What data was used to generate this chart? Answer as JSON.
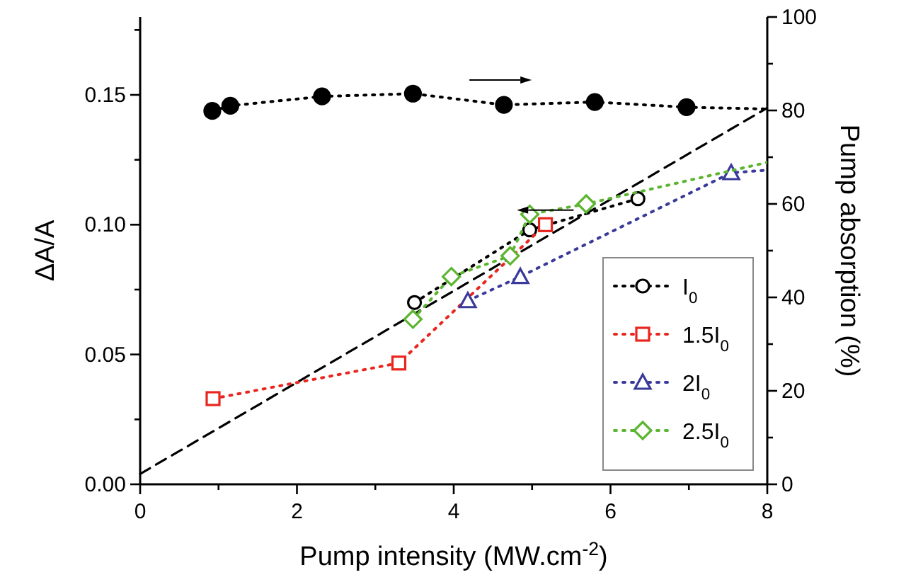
{
  "chart_data": {
    "type": "line",
    "xlabel": "Pump intensity (MW.cm$^{-2}$)",
    "ylabel": "ΔA/A",
    "y2label": "Pump absorption (%)",
    "xlim": [
      0,
      8
    ],
    "xticks": [
      0,
      {
        "value": 1,
        "label": null
      },
      2,
      {
        "value": 3,
        "label": null
      },
      4,
      {
        "value": 5,
        "label": null
      },
      6,
      {
        "value": 7,
        "label": null
      },
      8
    ],
    "ylim": [
      0,
      0.18
    ],
    "yticks": [
      {
        "value": 0,
        "label": "0.00"
      },
      {
        "value": 0.025,
        "label": null
      },
      {
        "value": 0.05,
        "label": "0.05"
      },
      {
        "value": 0.075,
        "label": null
      },
      {
        "value": 0.1,
        "label": "0.10"
      },
      {
        "value": 0.125,
        "label": null
      },
      {
        "value": 0.15,
        "label": "0.15"
      },
      {
        "value": 0.175,
        "label": null
      }
    ],
    "y2lim": [
      0,
      100
    ],
    "y2ticks": [
      0,
      {
        "value": 10,
        "label": null
      },
      20,
      {
        "value": 30,
        "label": null
      },
      40,
      {
        "value": 50,
        "label": null
      },
      60,
      {
        "value": 70,
        "label": null
      },
      80,
      {
        "value": 90,
        "label": null
      },
      100
    ],
    "legend": "bottom right",
    "grid": false,
    "series": [
      {
        "color": "#000000",
        "marker": "circle",
        "line_style": "dotted",
        "axis": "y2",
        "x": [
          0.92,
          1.15,
          2.32,
          3.48,
          4.64,
          5.8,
          6.97,
          8
        ],
        "values": [
          79.9,
          81,
          83,
          83.6,
          81.2,
          81.8,
          80.7,
          80.3
        ]
      },
      {
        "color": "#000000",
        "marker": "none",
        "line_style": "dashed",
        "x": [
          0,
          8
        ],
        "values": [
          0.004,
          0.145
        ]
      },
      {
        "name": "I$_{0}$",
        "color": "#000000",
        "marker": "circle",
        "line_style": "dotted",
        "x": [
          3.5,
          4.97,
          6.35
        ],
        "values": [
          0.07,
          0.098,
          0.11
        ]
      },
      {
        "name": "1.5I$_{0}$",
        "color": "#e8251f",
        "marker": "square",
        "line_style": "dotted",
        "x": [
          0.93,
          3.3,
          5.17
        ],
        "values": [
          0.033,
          0.0467,
          0.1
        ]
      },
      {
        "name": "2I$_{0}$",
        "color": "#3a3a9a",
        "marker": "triangle",
        "line_style": "dotted",
        "x": [
          4.18,
          4.85,
          7.54,
          8
        ],
        "values": [
          0.0707,
          0.08,
          0.12,
          0.121
        ]
      },
      {
        "name": "2.5I$_{0}$",
        "color": "#5cb531",
        "marker": "diamond",
        "line_style": "dotted",
        "x": [
          3.48,
          3.97,
          4.72,
          4.97,
          5.69,
          8
        ],
        "values": [
          0.0636,
          0.08,
          0.088,
          0.104,
          0.108,
          0.124
        ]
      }
    ]
  }
}
